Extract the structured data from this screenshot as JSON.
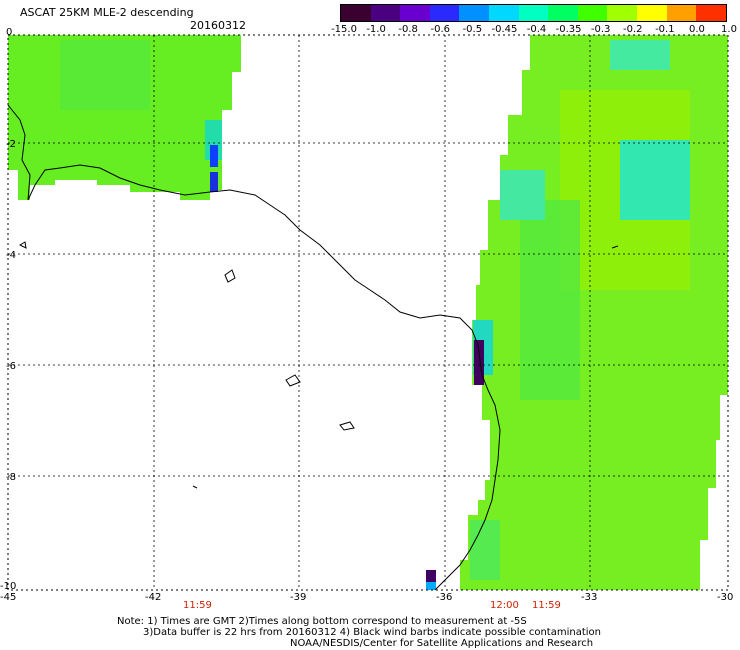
{
  "header": {
    "title": "ASCAT 25KM MLE-2 descending",
    "date": "20160312"
  },
  "colorbar": {
    "labels": [
      "-15.0",
      "-1.0",
      "-0.8",
      "-0.6",
      "-0.5",
      "-0.45",
      "-0.4",
      "-0.35",
      "-0.3",
      "-0.2",
      "-0.1",
      "0.0",
      "1.0"
    ],
    "colors": [
      "#3a0030",
      "#4b0082",
      "#6a00d0",
      "#2a2aff",
      "#0090ff",
      "#00d8ff",
      "#00ffc0",
      "#00ff60",
      "#40ff00",
      "#a0ff00",
      "#ffff00",
      "#ffa000",
      "#ff3000"
    ]
  },
  "axes": {
    "x_ticks": [
      "-45",
      "-42",
      "-39",
      "-36",
      "-33",
      "-30"
    ],
    "y_ticks": [
      "0",
      "-2",
      "-4",
      "-6",
      "-8",
      "-10"
    ]
  },
  "times": [
    "11:59",
    "12:00",
    "11:59"
  ],
  "notes": {
    "line1": "Note: 1) Times are GMT 2)Times along bottom correspond to measurement at -5S",
    "line2": "3)Data buffer is 22 hrs from 20160312 4) Black wind barbs indicate possible contamination",
    "line3": "NOAA/NESDIS/Center for Satellite Applications and Research"
  }
}
